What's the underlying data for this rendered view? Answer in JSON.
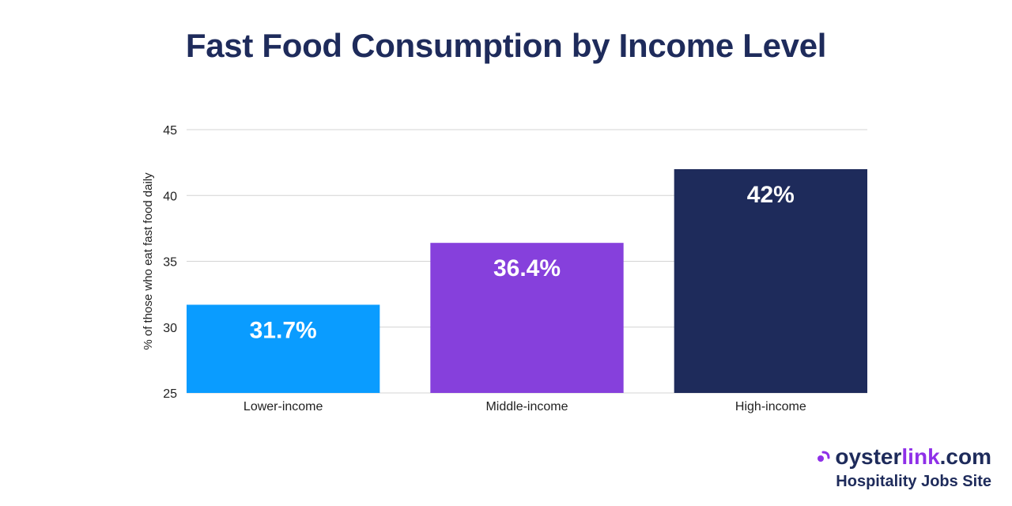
{
  "chart_data": {
    "type": "bar",
    "title": "Fast Food Consumption by Income Level",
    "categories": [
      "Lower-income",
      "Middle-income",
      "High-income"
    ],
    "values": [
      31.7,
      36.4,
      42
    ],
    "data_labels": [
      "31.7%",
      "36.4%",
      "42%"
    ],
    "colors": [
      "#0a9cff",
      "#8640dc",
      "#1e2b5b"
    ],
    "xlabel": "",
    "ylabel": "% of those who eat fast food daily",
    "ylim": [
      25,
      45
    ],
    "yticks": [
      25,
      30,
      35,
      40,
      45
    ],
    "grid": true
  },
  "brand": {
    "name_part1": "oyster",
    "name_part2": "link",
    "name_part3": ".com",
    "tagline": "Hospitality Jobs Site",
    "color_primary": "#1e2b5b",
    "color_accent": "#8f30e8",
    "icon": "oysterlink-logo-icon"
  }
}
